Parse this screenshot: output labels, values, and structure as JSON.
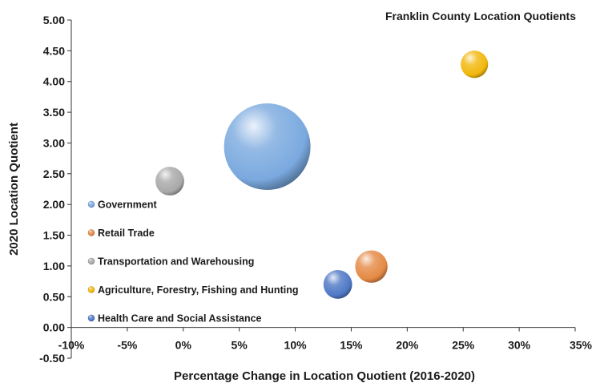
{
  "chart_data": {
    "type": "bubble",
    "title": "Franklin County Location Quotients",
    "xlabel": "Percentage Change in Location Quotient (2016-2020)",
    "ylabel": "2020 Location Quotient",
    "xlim": [
      -10,
      35
    ],
    "ylim": [
      -0.5,
      5.0
    ],
    "x_ticks": [
      -10,
      -5,
      0,
      5,
      10,
      15,
      20,
      25,
      30,
      35
    ],
    "x_tick_labels": [
      "-10%",
      "-5%",
      "0%",
      "5%",
      "10%",
      "15%",
      "20%",
      "25%",
      "30%",
      "35%"
    ],
    "y_ticks": [
      -0.5,
      0.0,
      0.5,
      1.0,
      1.5,
      2.0,
      2.5,
      3.0,
      3.5,
      4.0,
      4.5,
      5.0
    ],
    "y_tick_labels": [
      "-0.50",
      "0.00",
      "0.50",
      "1.00",
      "1.50",
      "2.00",
      "2.50",
      "3.00",
      "3.50",
      "4.00",
      "4.50",
      "5.00"
    ],
    "grid": false,
    "legend_position": "left",
    "series": [
      {
        "name": "Government",
        "x": 7.5,
        "y": 2.94,
        "size": 100,
        "color": "#7aa9df"
      },
      {
        "name": "Retail Trade",
        "x": 16.8,
        "y": 0.99,
        "size": 14,
        "color": "#e58a45"
      },
      {
        "name": "Transportation and Warehousing",
        "x": -1.2,
        "y": 2.38,
        "size": 11,
        "color": "#a9a9a9"
      },
      {
        "name": "Agriculture, Forestry, Fishing and Hunting",
        "x": 26.0,
        "y": 4.28,
        "size": 10,
        "color": "#f2b80c"
      },
      {
        "name": "Health Care and Social Assistance",
        "x": 13.8,
        "y": 0.7,
        "size": 11,
        "color": "#4f78c6"
      }
    ]
  }
}
